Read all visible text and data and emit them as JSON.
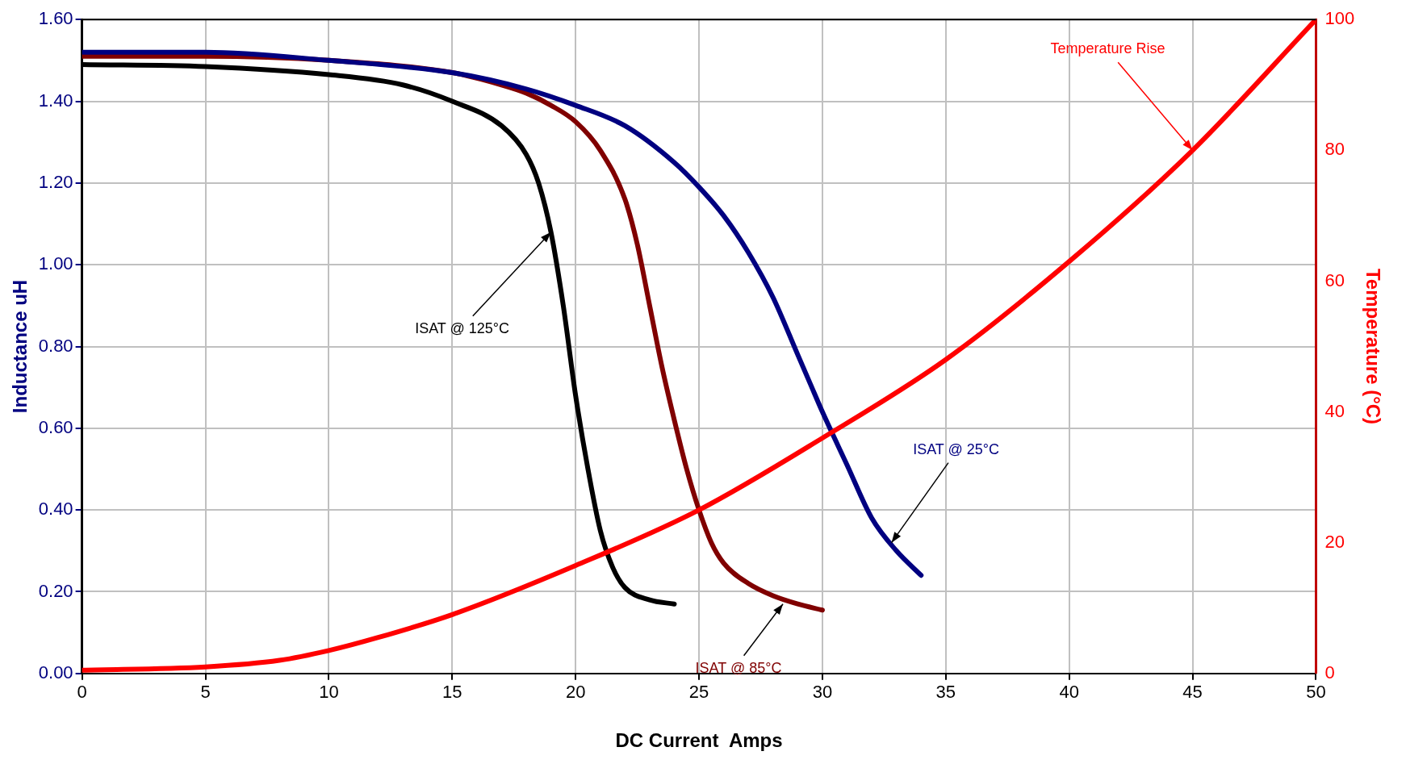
{
  "chart_data": {
    "type": "line",
    "xlabel": "DC Current  Amps",
    "ylabel": "Inductance uH",
    "y2label": "Temperature (°C)",
    "xlim": [
      0,
      50
    ],
    "xticks": [
      0,
      5,
      10,
      15,
      20,
      25,
      30,
      35,
      40,
      45,
      50
    ],
    "ylim": [
      0,
      1.6
    ],
    "yticks": [
      {
        "value": 0,
        "label": "0.00"
      },
      {
        "value": 0.2,
        "label": "0.20"
      },
      {
        "value": 0.4,
        "label": "0.40"
      },
      {
        "value": 0.6,
        "label": "0.60"
      },
      {
        "value": 0.8,
        "label": "0.80"
      },
      {
        "value": 1,
        "label": "1.00"
      },
      {
        "value": 1.2,
        "label": "1.20"
      },
      {
        "value": 1.4,
        "label": "1.40"
      },
      {
        "value": 1.6,
        "label": "1.60"
      }
    ],
    "y2lim": [
      0,
      100
    ],
    "y2ticks": [
      0,
      20,
      40,
      60,
      80,
      100
    ],
    "grid": true,
    "legend": false,
    "marker": "none",
    "line_style": "solid",
    "series": [
      {
        "color": "#ff0000",
        "axis": "y2",
        "x": [
          0,
          5,
          8,
          10,
          12,
          15,
          20,
          25,
          30,
          35,
          40,
          45,
          50
        ],
        "values": [
          0.5,
          1,
          2,
          3.5,
          5.5,
          9,
          16.5,
          25,
          36,
          48,
          63,
          80,
          100
        ]
      },
      {
        "color": "#000000",
        "x": [
          0,
          5,
          10,
          13,
          15,
          17,
          18,
          18.5,
          19,
          19.5,
          20,
          20.5,
          21,
          21.5,
          22,
          23,
          24
        ],
        "values": [
          1.49,
          1.485,
          1.465,
          1.44,
          1.4,
          1.34,
          1.27,
          1.2,
          1.08,
          0.9,
          0.68,
          0.5,
          0.35,
          0.26,
          0.21,
          0.18,
          0.17
        ]
      },
      {
        "color": "#000080",
        "x": [
          0,
          5,
          10,
          15,
          18,
          20,
          22,
          24,
          25,
          26,
          27,
          28,
          29,
          29.5,
          30,
          31,
          32,
          33,
          34
        ],
        "values": [
          1.52,
          1.52,
          1.5,
          1.47,
          1.43,
          1.39,
          1.34,
          1.25,
          1.19,
          1.12,
          1.03,
          0.92,
          0.78,
          0.71,
          0.64,
          0.51,
          0.38,
          0.3,
          0.24
        ]
      },
      {
        "color": "#800000",
        "x": [
          0,
          5,
          10,
          15,
          17,
          18,
          19,
          20,
          21,
          22,
          22.5,
          23,
          23.5,
          24,
          24.5,
          25,
          25.5,
          26,
          27,
          28,
          29,
          30
        ],
        "values": [
          1.51,
          1.51,
          1.5,
          1.47,
          1.44,
          1.42,
          1.39,
          1.35,
          1.28,
          1.16,
          1.05,
          0.9,
          0.75,
          0.62,
          0.5,
          0.4,
          0.32,
          0.27,
          0.22,
          0.19,
          0.17,
          0.155
        ]
      }
    ],
    "annotations": [
      {
        "text": "Temperature Rise",
        "x": 45,
        "y": 1.28
      },
      {
        "text": "ISAT @ 125°C",
        "x": 19,
        "y": 1.08
      },
      {
        "text": "ISAT @ 25°C",
        "x": 32.8,
        "y": 0.32
      },
      {
        "text": "ISAT @ 85°C",
        "x": 28.4,
        "y": 0.17
      }
    ]
  }
}
